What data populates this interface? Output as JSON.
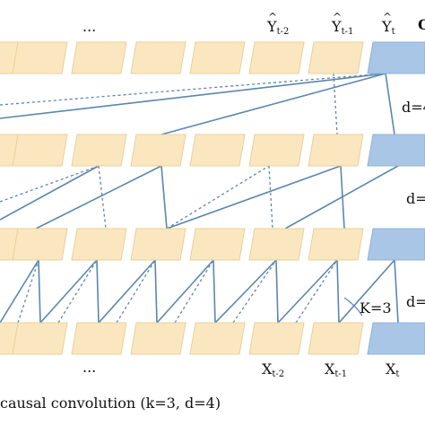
{
  "top_row": {
    "ellipsis": "...",
    "labels": [
      {
        "base": "Y",
        "sub": "t-2"
      },
      {
        "base": "Y",
        "sub": "t-1"
      },
      {
        "base": "Y",
        "sub": "t"
      }
    ],
    "right_clipped": "O"
  },
  "bottom_row": {
    "ellipsis": "...",
    "labels": [
      {
        "base": "X",
        "sub": "t-2"
      },
      {
        "base": "X",
        "sub": "t-1"
      },
      {
        "base": "X",
        "sub": "t"
      }
    ]
  },
  "dilations": [
    "d=4",
    "d=",
    "d="
  ],
  "kernel_label": "K=3",
  "caption": "causal convolution (k=3, d=4)",
  "colors": {
    "cell_fill": "#fbe7bf",
    "cell_stroke": "#e8cf9c",
    "current_fill": "#a9c6e6",
    "current_stroke": "#8fb2d8",
    "line": "#5b86ae"
  }
}
